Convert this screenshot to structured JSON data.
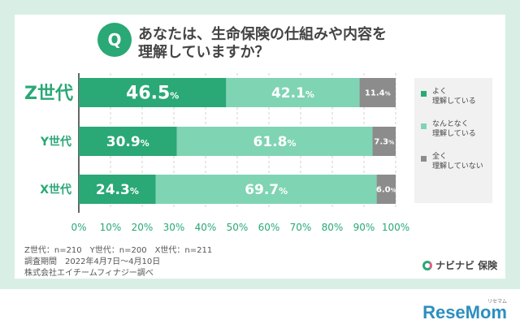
{
  "title": {
    "badge": "Q",
    "line1": "あなたは、生命保険の仕組みや内容を",
    "line2": "理解していますか？"
  },
  "legend": {
    "items": [
      {
        "label1": "よく",
        "label2": "理解している",
        "color": "#2aa876"
      },
      {
        "label1": "なんとなく",
        "label2": "理解している",
        "color": "#7fd4b3"
      },
      {
        "label1": "全く",
        "label2": "理解していない",
        "color": "#8c8c8c"
      }
    ]
  },
  "notes": {
    "line1": "Z世代：n=210　Y世代：n=200　X世代：n=211",
    "line2": "調査期間　2022年4月7日～4月10日",
    "line3": "株式会社エイチームフィナジー調べ"
  },
  "brand": "ナビナビ 保険",
  "watermark": {
    "main": "ReseMom",
    "small": "リセマム"
  },
  "chart_data": {
    "type": "bar",
    "orientation": "horizontal-stacked-100",
    "categories": [
      "Z世代",
      "Y世代",
      "X世代"
    ],
    "series": [
      {
        "name": "よく理解している",
        "values": [
          46.5,
          30.9,
          24.3
        ],
        "color": "#2aa876"
      },
      {
        "name": "なんとなく理解している",
        "values": [
          42.1,
          61.8,
          69.7
        ],
        "color": "#7fd4b3"
      },
      {
        "name": "全く理解していない",
        "values": [
          11.4,
          7.3,
          6.0
        ],
        "color": "#8c8c8c"
      }
    ],
    "value_labels": [
      [
        "46.5",
        "42.1",
        "11.4"
      ],
      [
        "30.9",
        "61.8",
        "7.3"
      ],
      [
        "24.3",
        "69.7",
        "6.0"
      ]
    ],
    "unit": "%",
    "xlim": [
      0,
      100
    ],
    "x_ticks": [
      "0%",
      "10%",
      "20%",
      "30%",
      "40%",
      "50%",
      "60%",
      "70%",
      "80%",
      "90%",
      "100%"
    ],
    "grid": true,
    "legend_position": "right"
  }
}
